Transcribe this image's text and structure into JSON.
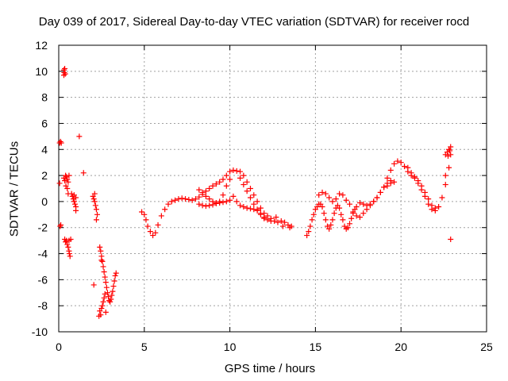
{
  "chart_data": {
    "type": "scatter",
    "title": "Day 039 of 2017, Sidereal Day-to-day VTEC variation (SDTVAR) for receiver rocd",
    "xlabel": "GPS time / hours",
    "ylabel": "SDTVAR / TECUs",
    "xlim": [
      0,
      25
    ],
    "ylim": [
      -10,
      12
    ],
    "xticks": [
      0,
      5,
      10,
      15,
      20,
      25
    ],
    "yticks": [
      -10,
      -8,
      -6,
      -4,
      -2,
      0,
      2,
      4,
      6,
      8,
      10,
      12
    ],
    "xtick_labels": [
      "0",
      "5",
      "10",
      "15",
      "20",
      "25"
    ],
    "ytick_labels": [
      "-10",
      "-8",
      "-6",
      "-4",
      "-2",
      "0",
      "2",
      "4",
      "6",
      "8",
      "10",
      "12"
    ],
    "grid": true,
    "marker": "+",
    "color": "#ff0000",
    "series": [
      {
        "name": "SDTVAR",
        "points": [
          [
            0.05,
            4.5
          ],
          [
            0.1,
            4.6
          ],
          [
            0.15,
            4.5
          ],
          [
            0.08,
            -1.9
          ],
          [
            0.12,
            -1.8
          ],
          [
            0.05,
            1.4
          ],
          [
            0.3,
            10.1
          ],
          [
            0.32,
            9.9
          ],
          [
            0.35,
            10.2
          ],
          [
            0.3,
            9.7
          ],
          [
            0.38,
            9.8
          ],
          [
            0.3,
            1.8
          ],
          [
            0.35,
            1.6
          ],
          [
            0.4,
            2.0
          ],
          [
            0.45,
            1.9
          ],
          [
            0.5,
            1.7
          ],
          [
            0.55,
            1.5
          ],
          [
            0.6,
            2.0
          ],
          [
            0.42,
            1.2
          ],
          [
            0.5,
            1.0
          ],
          [
            0.35,
            -2.9
          ],
          [
            0.4,
            -3.1
          ],
          [
            0.45,
            -3.0
          ],
          [
            0.5,
            -3.3
          ],
          [
            0.55,
            -3.5
          ],
          [
            0.6,
            -3.8
          ],
          [
            0.62,
            -4.0
          ],
          [
            0.66,
            -4.2
          ],
          [
            0.6,
            -3.0
          ],
          [
            0.7,
            -2.9
          ],
          [
            0.55,
            0.6
          ],
          [
            0.75,
            0.6
          ],
          [
            0.8,
            0.4
          ],
          [
            0.85,
            0.2
          ],
          [
            0.9,
            0.0
          ],
          [
            0.95,
            -0.2
          ],
          [
            1.0,
            -0.4
          ],
          [
            1.0,
            -0.7
          ],
          [
            0.9,
            0.5
          ],
          [
            1.0,
            0.3
          ],
          [
            1.2,
            5.0
          ],
          [
            1.45,
            2.2
          ],
          [
            2.0,
            0.4
          ],
          [
            2.05,
            0.2
          ],
          [
            2.1,
            0.0
          ],
          [
            2.15,
            -0.3
          ],
          [
            2.2,
            -0.6
          ],
          [
            2.25,
            -1.0
          ],
          [
            2.2,
            -1.4
          ],
          [
            2.1,
            0.6
          ],
          [
            2.05,
            -6.4
          ],
          [
            2.4,
            -3.5
          ],
          [
            2.45,
            -3.8
          ],
          [
            2.5,
            -4.2
          ],
          [
            2.55,
            -4.6
          ],
          [
            2.6,
            -5.0
          ],
          [
            2.65,
            -5.4
          ],
          [
            2.7,
            -5.8
          ],
          [
            2.75,
            -6.2
          ],
          [
            2.8,
            -6.6
          ],
          [
            2.85,
            -7.0
          ],
          [
            2.9,
            -7.3
          ],
          [
            2.95,
            -7.6
          ],
          [
            3.0,
            -7.7
          ],
          [
            3.05,
            -7.5
          ],
          [
            3.1,
            -7.2
          ],
          [
            3.15,
            -6.9
          ],
          [
            3.2,
            -6.5
          ],
          [
            3.25,
            -6.1
          ],
          [
            3.3,
            -5.7
          ],
          [
            3.35,
            -5.5
          ],
          [
            2.4,
            -8.4
          ],
          [
            2.45,
            -8.7
          ],
          [
            2.5,
            -8.2
          ],
          [
            2.55,
            -8.0
          ],
          [
            2.6,
            -7.7
          ],
          [
            2.65,
            -7.4
          ],
          [
            2.7,
            -7.1
          ],
          [
            2.75,
            -8.5
          ],
          [
            2.35,
            -8.8
          ],
          [
            2.5,
            -4.5
          ],
          [
            4.85,
            -0.8
          ],
          [
            5.0,
            -1.0
          ],
          [
            5.1,
            -1.4
          ],
          [
            5.2,
            -1.9
          ],
          [
            5.35,
            -2.3
          ],
          [
            5.5,
            -2.6
          ],
          [
            5.65,
            -2.4
          ],
          [
            5.8,
            -1.8
          ],
          [
            6.0,
            -1.1
          ],
          [
            6.2,
            -0.6
          ],
          [
            6.4,
            -0.2
          ],
          [
            6.6,
            0.0
          ],
          [
            6.8,
            0.1
          ],
          [
            7.0,
            0.2
          ],
          [
            7.2,
            0.25
          ],
          [
            7.4,
            0.2
          ],
          [
            7.6,
            0.15
          ],
          [
            7.8,
            0.1
          ],
          [
            8.0,
            0.2
          ],
          [
            8.2,
            0.35
          ],
          [
            8.4,
            0.55
          ],
          [
            8.6,
            0.8
          ],
          [
            8.8,
            1.0
          ],
          [
            9.0,
            1.2
          ],
          [
            9.2,
            1.35
          ],
          [
            9.4,
            1.5
          ],
          [
            9.6,
            1.7
          ],
          [
            9.8,
            2.0
          ],
          [
            10.0,
            2.3
          ],
          [
            10.2,
            2.4
          ],
          [
            10.4,
            2.35
          ],
          [
            10.6,
            2.3
          ],
          [
            10.8,
            2.0
          ],
          [
            11.0,
            1.5
          ],
          [
            11.2,
            1.0
          ],
          [
            11.4,
            0.5
          ],
          [
            11.6,
            0.0
          ],
          [
            11.8,
            -0.5
          ],
          [
            12.0,
            -0.9
          ],
          [
            12.2,
            -1.1
          ],
          [
            12.4,
            -1.3
          ],
          [
            12.6,
            -1.5
          ],
          [
            12.8,
            -1.6
          ],
          [
            13.0,
            -1.5
          ],
          [
            13.2,
            -1.6
          ],
          [
            13.4,
            -1.8
          ],
          [
            13.6,
            -1.9
          ],
          [
            12.7,
            -1.2
          ],
          [
            13.1,
            -1.9
          ],
          [
            13.5,
            -2.0
          ],
          [
            8.2,
            0.9
          ],
          [
            8.4,
            0.7
          ],
          [
            8.6,
            0.4
          ],
          [
            8.8,
            0.2
          ],
          [
            9.0,
            0.0
          ],
          [
            9.2,
            -0.1
          ],
          [
            9.4,
            0.0
          ],
          [
            9.6,
            0.5
          ],
          [
            9.8,
            1.2
          ],
          [
            10.0,
            1.7
          ],
          [
            8.2,
            -0.2
          ],
          [
            8.4,
            -0.3
          ],
          [
            8.6,
            -0.35
          ],
          [
            8.8,
            -0.3
          ],
          [
            9.0,
            -0.25
          ],
          [
            9.2,
            -0.15
          ],
          [
            9.4,
            -0.1
          ],
          [
            9.6,
            -0.05
          ],
          [
            9.8,
            0.0
          ],
          [
            10.0,
            0.1
          ],
          [
            10.2,
            0.4
          ],
          [
            10.4,
            0.0
          ],
          [
            10.6,
            -0.3
          ],
          [
            10.8,
            -0.4
          ],
          [
            11.0,
            -0.5
          ],
          [
            11.2,
            -0.55
          ],
          [
            11.4,
            -0.6
          ],
          [
            11.6,
            -0.7
          ],
          [
            11.8,
            -0.9
          ],
          [
            12.0,
            -1.2
          ],
          [
            10.6,
            1.8
          ],
          [
            10.8,
            1.3
          ],
          [
            11.0,
            0.8
          ],
          [
            11.2,
            0.3
          ],
          [
            11.4,
            -0.2
          ],
          [
            11.6,
            -0.6
          ],
          [
            11.8,
            -1.0
          ],
          [
            12.0,
            -1.3
          ],
          [
            12.2,
            -1.4
          ],
          [
            12.4,
            -1.5
          ],
          [
            14.5,
            -2.6
          ],
          [
            14.6,
            -2.3
          ],
          [
            14.7,
            -1.9
          ],
          [
            14.8,
            -1.4
          ],
          [
            14.9,
            -1.0
          ],
          [
            15.0,
            -0.6
          ],
          [
            15.1,
            -0.4
          ],
          [
            15.2,
            -0.2
          ],
          [
            15.3,
            -0.2
          ],
          [
            15.4,
            -0.4
          ],
          [
            15.5,
            -0.9
          ],
          [
            15.6,
            -1.4
          ],
          [
            15.7,
            -1.9
          ],
          [
            15.8,
            -2.1
          ],
          [
            15.9,
            -1.8
          ],
          [
            16.0,
            -1.4
          ],
          [
            16.1,
            -0.9
          ],
          [
            16.2,
            -0.5
          ],
          [
            16.3,
            -0.3
          ],
          [
            16.4,
            -0.5
          ],
          [
            16.5,
            -1.0
          ],
          [
            16.6,
            -1.4
          ],
          [
            16.7,
            -1.9
          ],
          [
            16.8,
            -2.1
          ],
          [
            16.9,
            -2.0
          ],
          [
            17.0,
            -1.7
          ],
          [
            17.1,
            -1.3
          ],
          [
            17.2,
            -0.9
          ],
          [
            17.3,
            -0.6
          ],
          [
            17.4,
            -0.4
          ],
          [
            15.2,
            0.5
          ],
          [
            15.4,
            0.7
          ],
          [
            15.6,
            0.6
          ],
          [
            15.8,
            0.3
          ],
          [
            16.0,
            0.0
          ],
          [
            16.2,
            0.2
          ],
          [
            16.4,
            0.6
          ],
          [
            16.6,
            0.5
          ],
          [
            16.8,
            0.1
          ],
          [
            17.0,
            -0.2
          ],
          [
            17.2,
            -0.8
          ],
          [
            17.4,
            -1.1
          ],
          [
            17.6,
            -1.2
          ],
          [
            17.8,
            -0.9
          ],
          [
            18.0,
            -0.6
          ],
          [
            18.2,
            -0.3
          ],
          [
            18.4,
            0.0
          ],
          [
            18.6,
            0.3
          ],
          [
            18.8,
            0.7
          ],
          [
            19.0,
            1.1
          ],
          [
            17.6,
            -0.1
          ],
          [
            17.8,
            -0.2
          ],
          [
            18.0,
            -0.3
          ],
          [
            18.2,
            -0.2
          ],
          [
            18.4,
            0.0
          ],
          [
            18.6,
            0.3
          ],
          [
            18.8,
            0.7
          ],
          [
            19.0,
            1.1
          ],
          [
            19.2,
            1.4
          ],
          [
            19.4,
            1.6
          ],
          [
            19.2,
            1.8
          ],
          [
            19.4,
            2.4
          ],
          [
            19.6,
            2.9
          ],
          [
            19.8,
            3.1
          ],
          [
            20.0,
            3.0
          ],
          [
            20.2,
            2.7
          ],
          [
            20.4,
            2.3
          ],
          [
            20.6,
            2.0
          ],
          [
            20.8,
            1.8
          ],
          [
            21.0,
            1.6
          ],
          [
            21.2,
            1.2
          ],
          [
            21.4,
            0.7
          ],
          [
            21.6,
            0.2
          ],
          [
            21.8,
            -0.3
          ],
          [
            22.0,
            -0.5
          ],
          [
            22.2,
            -0.4
          ],
          [
            22.4,
            0.3
          ],
          [
            22.6,
            1.3
          ],
          [
            22.8,
            2.6
          ],
          [
            22.9,
            3.6
          ],
          [
            19.2,
            1.2
          ],
          [
            19.4,
            1.4
          ],
          [
            19.6,
            1.5
          ],
          [
            20.4,
            2.6
          ],
          [
            20.6,
            2.2
          ],
          [
            20.8,
            1.9
          ],
          [
            21.0,
            1.4
          ],
          [
            21.2,
            0.9
          ],
          [
            21.4,
            0.4
          ],
          [
            21.6,
            -0.2
          ],
          [
            21.8,
            -0.6
          ],
          [
            22.0,
            -0.7
          ],
          [
            22.6,
            2.0
          ],
          [
            22.6,
            3.6
          ],
          [
            22.7,
            3.8
          ],
          [
            22.8,
            4.0
          ],
          [
            22.9,
            4.2
          ],
          [
            22.85,
            3.9
          ],
          [
            22.75,
            3.5
          ],
          [
            22.9,
            -2.9
          ]
        ]
      }
    ]
  }
}
